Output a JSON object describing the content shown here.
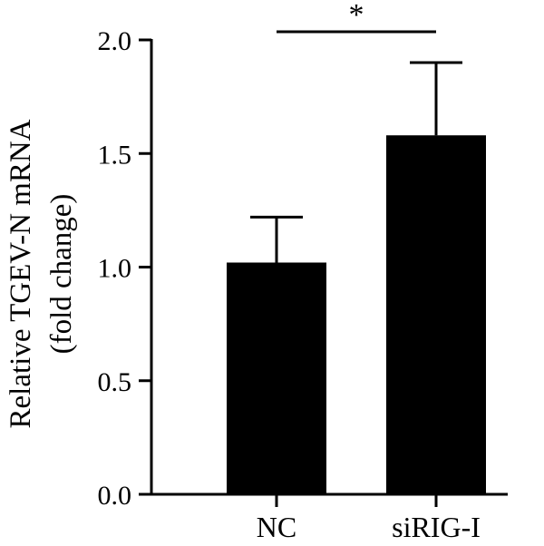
{
  "chart_data": {
    "type": "bar",
    "categories": [
      "NC",
      "siRIG-I"
    ],
    "values": [
      1.02,
      1.58
    ],
    "error_upper": [
      1.22,
      1.9
    ],
    "ylabel_line1": "Relative TGEV-N mRNA",
    "ylabel_line2": "(fold change)",
    "ylim": [
      0,
      2.0
    ],
    "yticks": [
      "0.0",
      "0.5",
      "1.0",
      "1.5",
      "2.0"
    ],
    "significance": {
      "marker": "*",
      "between": [
        "NC",
        "siRIG-I"
      ]
    },
    "bar_color": "#000000",
    "grid": false
  }
}
